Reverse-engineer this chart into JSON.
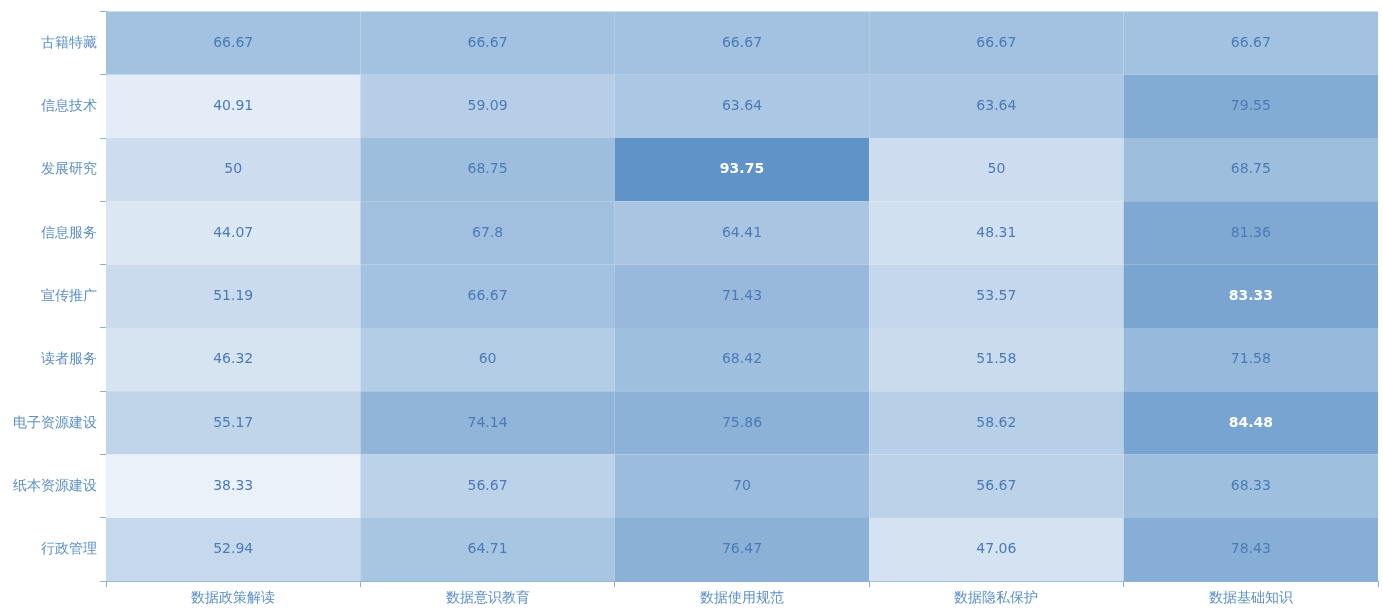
{
  "chart_data": {
    "type": "heatmap",
    "categories": [
      "数据政策解读",
      "数据意识教育",
      "数据使用规范",
      "数据隐私保护",
      "数据基础知识"
    ],
    "y_categories": [
      "古籍特藏",
      "信息技术",
      "发展研究",
      "信息服务",
      "宣传推广",
      "读者服务",
      "电子资源建设",
      "纸本资源建设",
      "行政管理"
    ],
    "cells": [
      [
        66.67,
        66.67,
        66.67,
        66.67,
        66.67
      ],
      [
        40.91,
        59.09,
        63.64,
        63.64,
        79.55
      ],
      [
        50,
        68.75,
        93.75,
        50,
        68.75
      ],
      [
        44.07,
        67.8,
        64.41,
        48.31,
        81.36
      ],
      [
        51.19,
        66.67,
        71.43,
        53.57,
        83.33
      ],
      [
        46.32,
        60,
        68.42,
        51.58,
        71.58
      ],
      [
        55.17,
        74.14,
        75.86,
        58.62,
        84.48
      ],
      [
        38.33,
        56.67,
        70,
        56.67,
        68.33
      ],
      [
        52.94,
        64.71,
        76.47,
        47.06,
        78.43
      ]
    ],
    "data_labels": true
  }
}
